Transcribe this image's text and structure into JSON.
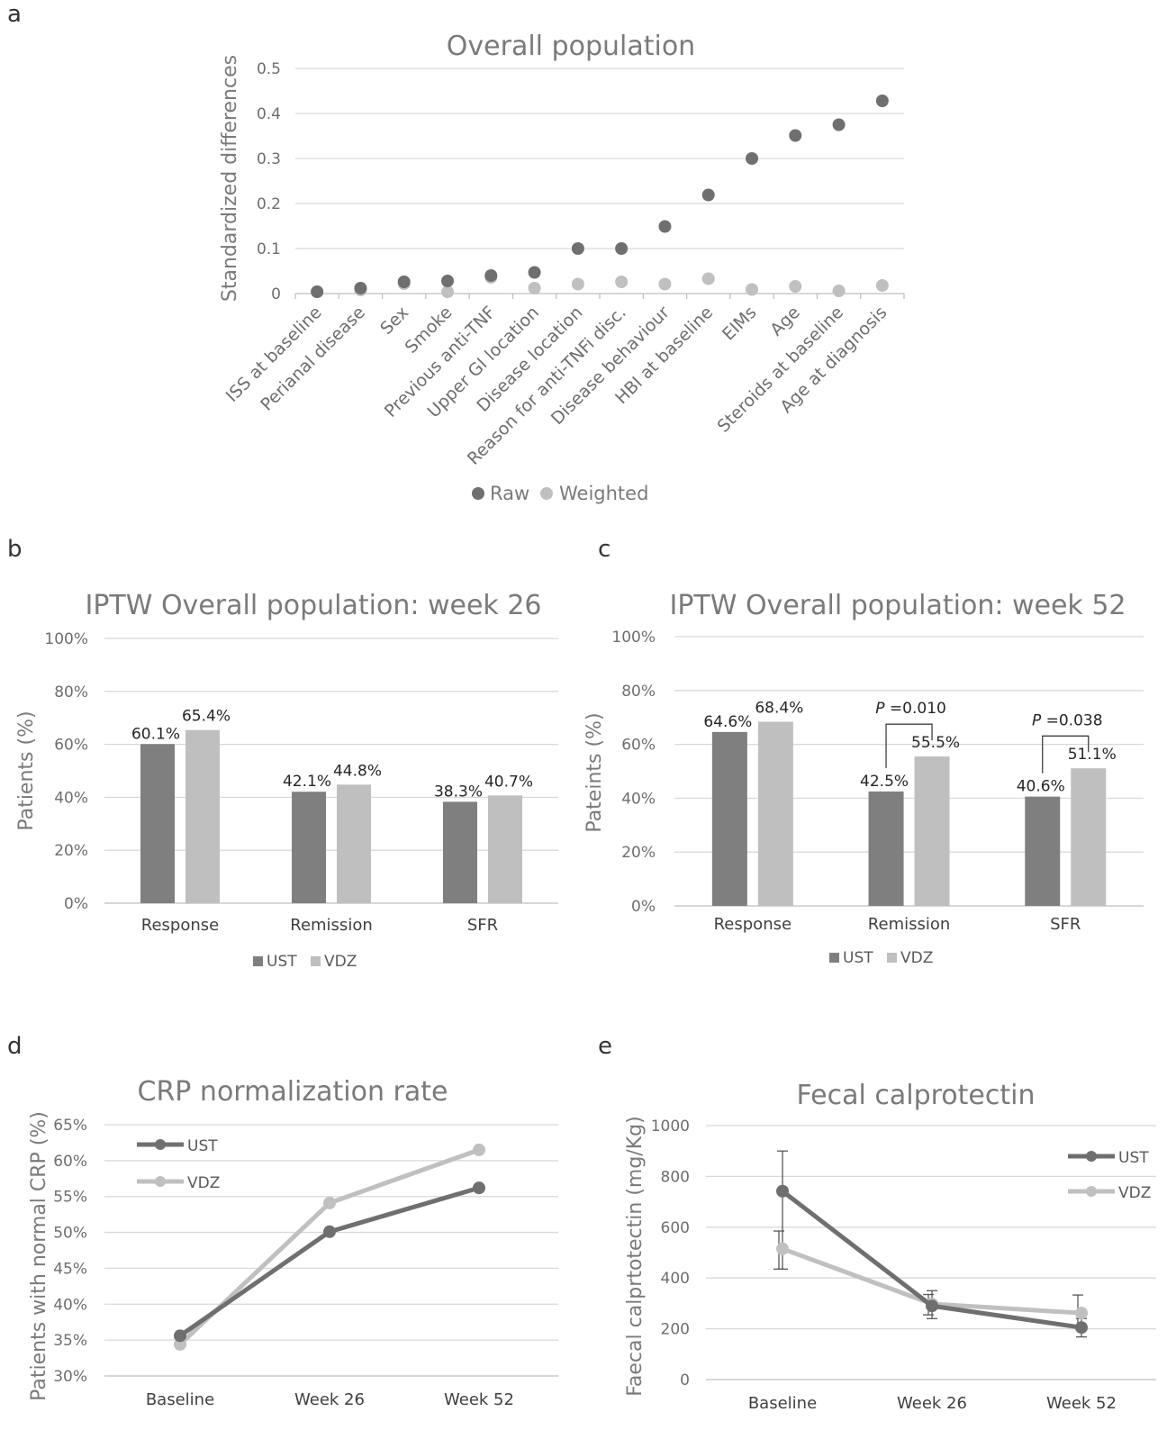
{
  "panels": {
    "a": "a",
    "b": "b",
    "c": "c",
    "d": "d",
    "e": "e"
  },
  "colors": {
    "dark": "#6f6f6f",
    "light": "#c0c0c0",
    "bar_dark": "#7f7f7f",
    "bar_light": "#bfbfbf"
  },
  "chart_data": [
    {
      "type": "scatter",
      "title": "Overall population",
      "ylabel": "Standardized differences",
      "ylim": [
        0,
        0.5
      ],
      "yticks": [
        "0",
        "0.1",
        "0.2",
        "0.3",
        "0.4",
        "0.5"
      ],
      "categories": [
        "ISS at baseline",
        "Perianal disease",
        "Sex",
        "Smoke",
        "Previous anti-TNF",
        "Upper GI location",
        "Disease location",
        "Reason for anti-TNFi disc.",
        "Disease behaviour",
        "HBI at baseline",
        "EIMs",
        "Age",
        "Steroids at baseline",
        "Age at diagnosis"
      ],
      "series": [
        {
          "name": "Raw",
          "values": [
            0.004,
            0.012,
            0.026,
            0.028,
            0.04,
            0.047,
            0.1,
            0.1,
            0.149,
            0.219,
            0.3,
            0.351,
            0.375,
            0.428
          ]
        },
        {
          "name": "Weighted",
          "values": [
            0.004,
            0.008,
            0.022,
            0.004,
            0.036,
            0.012,
            0.021,
            0.026,
            0.021,
            0.033,
            0.009,
            0.016,
            0.006,
            0.018
          ]
        }
      ],
      "legend": "bottom"
    },
    {
      "type": "bar",
      "title": "IPTW Overall population: week 26",
      "ylabel": "Patients (%)",
      "ylim": [
        0,
        100
      ],
      "yticks": [
        "0%",
        "20%",
        "40%",
        "60%",
        "80%",
        "100%"
      ],
      "categories": [
        "Response",
        "Remission",
        "SFR"
      ],
      "series": [
        {
          "name": "UST",
          "values": [
            60.1,
            42.1,
            38.3
          ],
          "labels": [
            "60.1%",
            "42.1%",
            "38.3%"
          ]
        },
        {
          "name": "VDZ",
          "values": [
            65.4,
            44.8,
            40.7
          ],
          "labels": [
            "65.4%",
            "44.8%",
            "40.7%"
          ]
        }
      ],
      "legend": "bottom"
    },
    {
      "type": "bar",
      "title": "IPTW Overall population: week 52",
      "ylabel": "Pateints (%)",
      "ylim": [
        0,
        100
      ],
      "yticks": [
        "0%",
        "20%",
        "40%",
        "60%",
        "80%",
        "100%"
      ],
      "categories": [
        "Response",
        "Remission",
        "SFR"
      ],
      "series": [
        {
          "name": "UST",
          "values": [
            64.6,
            42.5,
            40.6
          ],
          "labels": [
            "64.6%",
            "42.5%",
            "40.6%"
          ]
        },
        {
          "name": "VDZ",
          "values": [
            68.4,
            55.5,
            51.1
          ],
          "labels": [
            "68.4%",
            "55.5%",
            "51.1%"
          ]
        }
      ],
      "annotations": [
        {
          "category": 1,
          "p_label": "P",
          "p_value": " =0.010"
        },
        {
          "category": 2,
          "p_label": "P",
          "p_value": " =0.038"
        }
      ],
      "legend": "bottom"
    },
    {
      "type": "line",
      "title": "CRP normalization rate",
      "ylabel": "Patients with normal CRP (%)",
      "ylim": [
        30,
        65
      ],
      "yticks": [
        "30%",
        "35%",
        "40%",
        "45%",
        "50%",
        "55%",
        "60%",
        "65%"
      ],
      "categories": [
        "Baseline",
        "Week 26",
        "Week 52"
      ],
      "series": [
        {
          "name": "UST",
          "values": [
            35.6,
            50.1,
            56.2
          ]
        },
        {
          "name": "VDZ",
          "values": [
            34.4,
            54.1,
            61.5
          ]
        }
      ],
      "legend": "top-left"
    },
    {
      "type": "line",
      "title": "Fecal calprotectin",
      "ylabel": "Faecal calprtotectin (mg/Kg)",
      "ylim": [
        0,
        1000
      ],
      "yticks": [
        "0",
        "200",
        "400",
        "600",
        "800",
        "1000"
      ],
      "categories": [
        "Baseline",
        "Week 26",
        "Week 52"
      ],
      "series": [
        {
          "name": "UST",
          "values": [
            742,
            290,
            205
          ],
          "err_low": [
            435,
            240,
            168
          ],
          "err_high": [
            900,
            350,
            240
          ]
        },
        {
          "name": "VDZ",
          "values": [
            515,
            298,
            262
          ],
          "err_low": [
            435,
            255,
            210
          ],
          "err_high": [
            585,
            335,
            333
          ]
        }
      ],
      "legend": "top-right"
    }
  ]
}
